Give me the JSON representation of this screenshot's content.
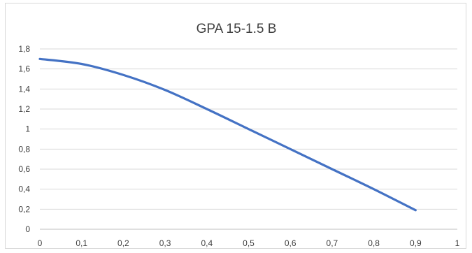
{
  "chart_data": {
    "type": "line",
    "title": "GPA 15-1.5 B",
    "xlabel": "",
    "ylabel": "",
    "xlim": [
      0,
      1
    ],
    "ylim": [
      0,
      1.8
    ],
    "x_ticks": [
      "0",
      "0,1",
      "0,2",
      "0,3",
      "0,4",
      "0,5",
      "0,6",
      "0,7",
      "0,8",
      "0,9",
      "1"
    ],
    "y_ticks": [
      "0",
      "0,2",
      "0,4",
      "0,6",
      "0,8",
      "1",
      "1,2",
      "1,4",
      "1,6",
      "1,8"
    ],
    "grid": true,
    "legend": "none",
    "series": [
      {
        "color": "#4472c4",
        "x": [
          0,
          0.1,
          0.2,
          0.3,
          0.4,
          0.5,
          0.6,
          0.7,
          0.8,
          0.9
        ],
        "y": [
          1.7,
          1.65,
          1.54,
          1.39,
          1.2,
          1.0,
          0.8,
          0.6,
          0.4,
          0.19
        ]
      }
    ]
  }
}
